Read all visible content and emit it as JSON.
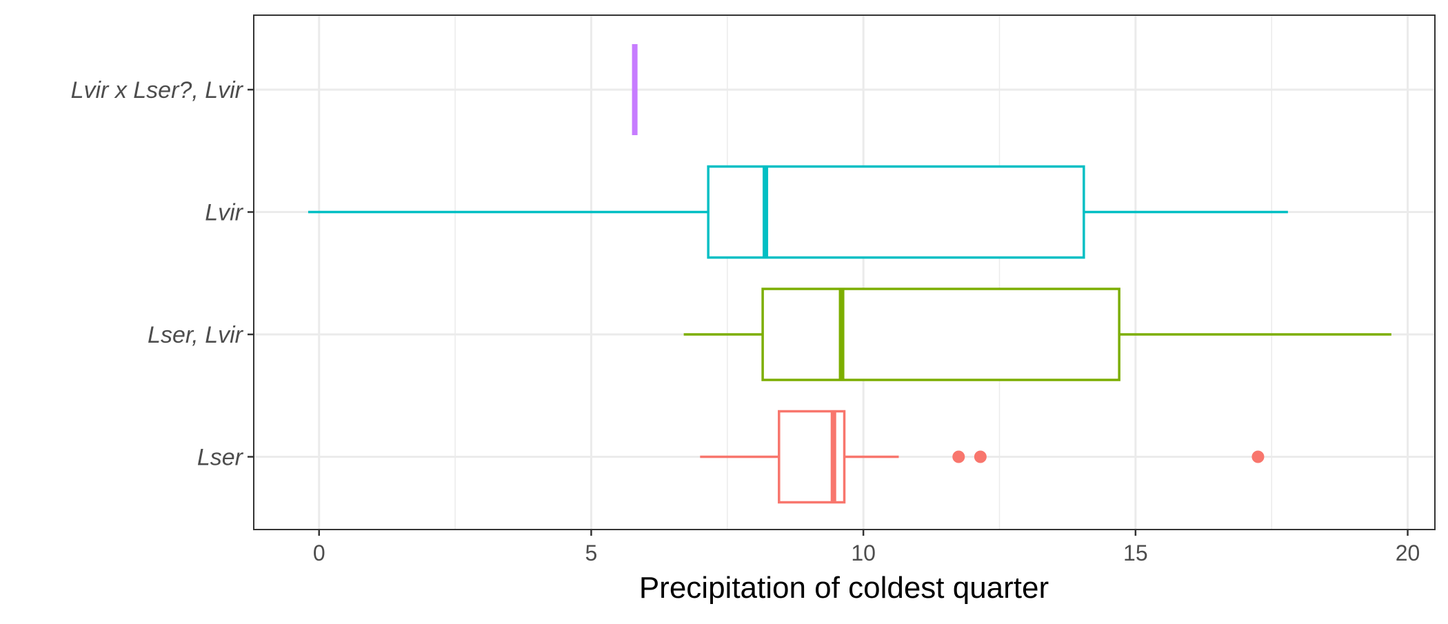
{
  "chart_data": {
    "type": "boxplot",
    "orientation": "horizontal",
    "xlabel": "Precipitation of coldest quarter",
    "ylabel": "",
    "xlim": [
      -1.2,
      20.5
    ],
    "x_ticks": [
      0,
      5,
      10,
      15,
      20
    ],
    "x_minor_gridlines": [
      2.5,
      7.5,
      12.5,
      17.5
    ],
    "grid": true,
    "legend": "none",
    "categories": [
      "Lvir x Lser?, Lvir",
      "Lvir",
      "Lser, Lvir",
      "Lser"
    ],
    "series": [
      {
        "category": "Lvir x Lser?, Lvir",
        "color": "#C77CFF",
        "whisker_low": 5.8,
        "q1": 5.8,
        "median": 5.8,
        "q3": 5.8,
        "whisker_high": 5.8,
        "outliers": []
      },
      {
        "category": "Lvir",
        "color": "#00BFC4",
        "whisker_low": -0.2,
        "q1": 7.15,
        "median": 8.2,
        "q3": 14.05,
        "whisker_high": 17.8,
        "outliers": []
      },
      {
        "category": "Lser, Lvir",
        "color": "#7CAE00",
        "whisker_low": 6.7,
        "q1": 8.15,
        "median": 9.6,
        "q3": 14.7,
        "whisker_high": 19.7,
        "outliers": []
      },
      {
        "category": "Lser",
        "color": "#F8766D",
        "whisker_low": 7.0,
        "q1": 8.45,
        "median": 9.45,
        "q3": 9.65,
        "whisker_high": 10.65,
        "outliers": [
          11.75,
          12.15,
          17.25
        ]
      }
    ]
  }
}
